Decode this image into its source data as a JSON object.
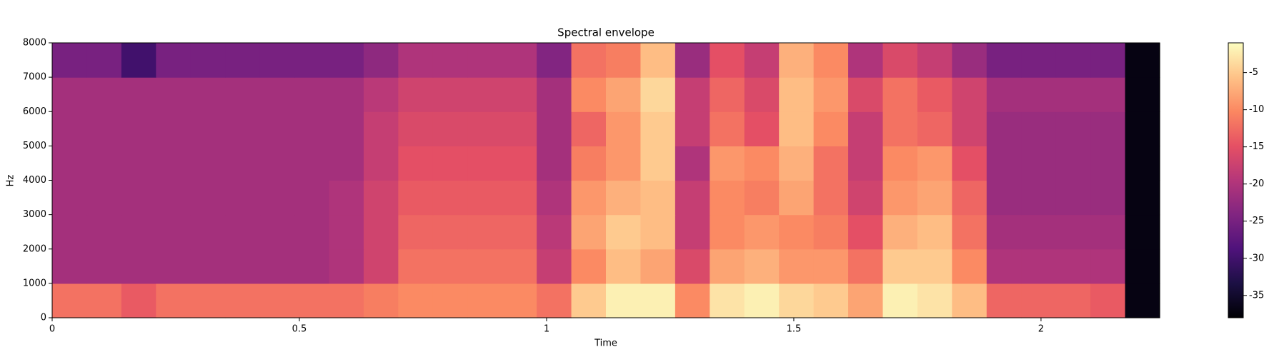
{
  "chart_data": {
    "type": "heatmap",
    "title": "Spectral envelope",
    "x_label": "Time",
    "y_label": "Hz",
    "colormap": "magma",
    "xlim": [
      0,
      2.24
    ],
    "ylim": [
      0,
      8000
    ],
    "xticks": [
      0,
      0.5,
      1,
      1.5,
      2
    ],
    "yticks": [
      0,
      1000,
      2000,
      3000,
      4000,
      5000,
      6000,
      7000,
      8000
    ],
    "clim": [
      -38,
      -1
    ],
    "colorbar_ticks": [
      -35,
      -30,
      -25,
      -20,
      -15,
      -10,
      -5
    ],
    "z": [
      [
        -12,
        -12,
        -14,
        -12,
        -12,
        -12,
        -12,
        -12,
        -12,
        -11,
        -10,
        -10,
        -10,
        -10,
        -12,
        -5,
        -2,
        -2,
        -10,
        -3,
        -2,
        -4,
        -5,
        -8,
        -2,
        -3,
        -6,
        -13,
        -13,
        -13,
        -14,
        -37
      ],
      [
        -21,
        -21,
        -21,
        -21,
        -21,
        -21,
        -21,
        -21,
        -20,
        -17,
        -12,
        -12,
        -12,
        -12,
        -18,
        -10,
        -6,
        -8,
        -16,
        -8,
        -7,
        -9,
        -9,
        -12,
        -5,
        -5,
        -10,
        -20,
        -20,
        -20,
        -20,
        -37
      ],
      [
        -21,
        -21,
        -21,
        -21,
        -21,
        -21,
        -21,
        -21,
        -20,
        -17,
        -13,
        -13,
        -13,
        -13,
        -19,
        -8,
        -5,
        -6,
        -18,
        -10,
        -9,
        -10,
        -11,
        -15,
        -7,
        -6,
        -12,
        -21,
        -21,
        -21,
        -21,
        -37
      ],
      [
        -21,
        -21,
        -21,
        -21,
        -21,
        -21,
        -21,
        -21,
        -20,
        -17,
        -14,
        -14,
        -14,
        -14,
        -20,
        -9,
        -7,
        -6,
        -18,
        -10,
        -11,
        -8,
        -12,
        -17,
        -9,
        -8,
        -13,
        -22,
        -22,
        -22,
        -22,
        -37
      ],
      [
        -21,
        -21,
        -21,
        -21,
        -21,
        -21,
        -21,
        -21,
        -21,
        -18,
        -15,
        -15,
        -15,
        -15,
        -21,
        -11,
        -9,
        -5,
        -20,
        -9,
        -10,
        -7,
        -12,
        -18,
        -10,
        -9,
        -15,
        -22,
        -22,
        -22,
        -22,
        -37
      ],
      [
        -21,
        -21,
        -21,
        -21,
        -21,
        -21,
        -21,
        -21,
        -21,
        -18,
        -16,
        -16,
        -16,
        -16,
        -21,
        -13,
        -9,
        -5,
        -18,
        -12,
        -15,
        -6,
        -10,
        -18,
        -12,
        -13,
        -17,
        -22,
        -22,
        -22,
        -22,
        -37
      ],
      [
        -21,
        -21,
        -21,
        -21,
        -21,
        -21,
        -21,
        -21,
        -21,
        -19,
        -17,
        -17,
        -17,
        -17,
        -21,
        -10,
        -8,
        -4,
        -18,
        -13,
        -16,
        -6,
        -9,
        -16,
        -12,
        -14,
        -17,
        -21,
        -21,
        -21,
        -21,
        -37
      ],
      [
        -25,
        -25,
        -30,
        -25,
        -25,
        -25,
        -25,
        -25,
        -25,
        -23,
        -20,
        -20,
        -20,
        -20,
        -24,
        -12,
        -11,
        -6,
        -22,
        -15,
        -18,
        -7,
        -10,
        -20,
        -16,
        -18,
        -22,
        -25,
        -25,
        -25,
        -25,
        -37
      ]
    ]
  }
}
